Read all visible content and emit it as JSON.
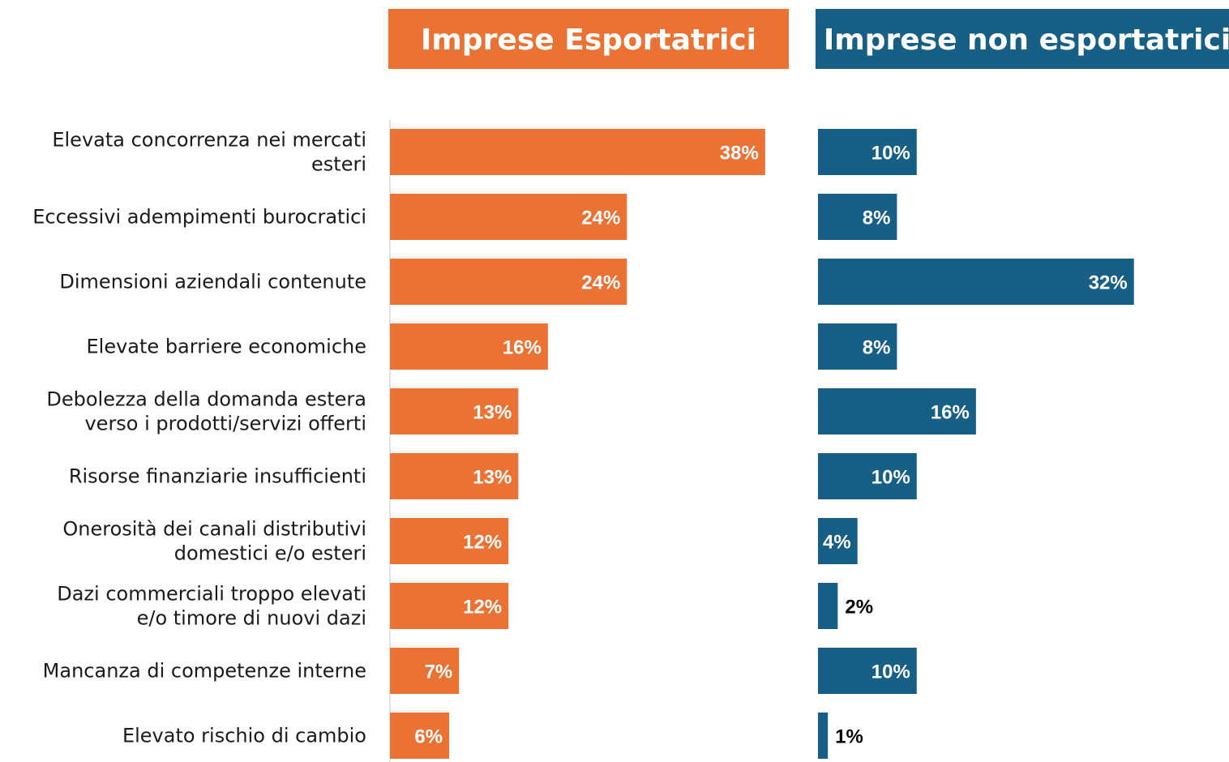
{
  "chart_data": {
    "type": "bar",
    "orientation": "horizontal",
    "layout": "two-panel",
    "title": "",
    "xlabel": "",
    "ylabel": "",
    "categories": [
      [
        "Elevata concorrenza nei mercati",
        "esteri"
      ],
      [
        "Eccessivi adempimenti burocratici"
      ],
      [
        "Dimensioni aziendali contenute"
      ],
      [
        "Elevate barriere economiche"
      ],
      [
        "Debolezza della domanda estera",
        "verso i prodotti/servizi offerti"
      ],
      [
        "Risorse finanziarie insufficienti"
      ],
      [
        "Onerosità dei canali distributivi",
        "domestici e/o esteri"
      ],
      [
        "Dazi commerciali troppo elevati",
        "e/o timore di nuovi dazi"
      ],
      [
        "Mancanza di competenze interne"
      ],
      [
        "Elevato rischio di cambio"
      ]
    ],
    "unit": "%",
    "xlim": [
      0,
      40
    ],
    "grid": false,
    "legend": "none",
    "series": [
      {
        "name": "Imprese Esportatrici",
        "color": "#ea7234",
        "values": [
          38,
          24,
          24,
          16,
          13,
          13,
          12,
          12,
          7,
          6
        ]
      },
      {
        "name": "Imprese non esportatrici",
        "color": "#175f84",
        "values": [
          10,
          8,
          32,
          8,
          16,
          10,
          4,
          2,
          10,
          1
        ]
      }
    ],
    "label_color_inside": "#ffffff",
    "label_color_outside": "#000000"
  }
}
